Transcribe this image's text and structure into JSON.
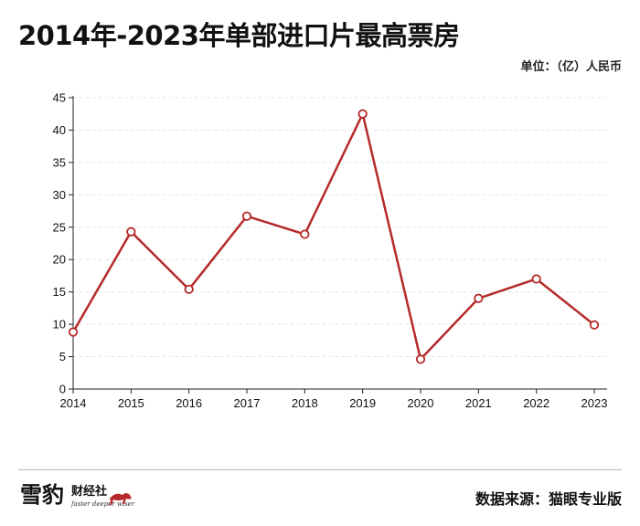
{
  "title": "2014年-2023年单部进口片最高票房",
  "unit_label": "单位：（亿）人民币",
  "source_label": "数据来源：猫眼专业版",
  "logo": {
    "name": "雪豹财经社",
    "big_text": "雪豹",
    "small_text": "财经社",
    "tagline": "faster deeper wiser"
  },
  "colors": {
    "line": "#b52a2a",
    "marker_fill": "#ffffff",
    "grid": "#e6e6e6",
    "axis": "#222222"
  },
  "chart_data": {
    "type": "line",
    "title": "2014年-2023年单部进口片最高票房",
    "xlabel": "",
    "ylabel": "",
    "categories": [
      "2014",
      "2015",
      "2016",
      "2017",
      "2018",
      "2019",
      "2020",
      "2021",
      "2022",
      "2023"
    ],
    "values": [
      8.8,
      24.3,
      15.4,
      26.7,
      23.9,
      42.5,
      4.6,
      14.0,
      17.0,
      9.9
    ],
    "ylim": [
      0,
      45
    ],
    "yticks": [
      "0",
      "5",
      "10",
      "15",
      "20",
      "25",
      "30",
      "35",
      "40",
      "45"
    ],
    "grid": true,
    "legend": "none"
  }
}
